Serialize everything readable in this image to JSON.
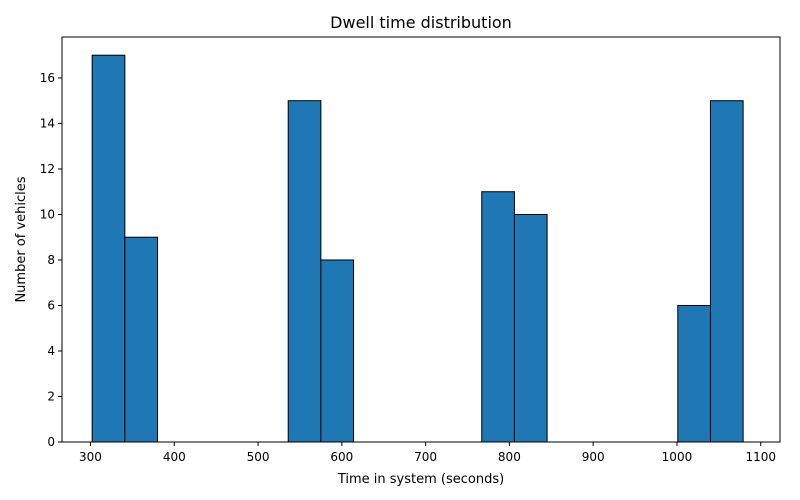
{
  "chart_data": {
    "type": "bar",
    "title": "Dwell time distribution",
    "xlabel": "Time in system (seconds)",
    "ylabel": "Number of vehicles",
    "xlim": [
      266,
      1123
    ],
    "ylim": [
      0,
      17.8
    ],
    "xticks": [
      300,
      400,
      500,
      600,
      700,
      800,
      900,
      1000,
      1100
    ],
    "yticks": [
      0,
      2,
      4,
      6,
      8,
      10,
      12,
      14,
      16
    ],
    "bins": [
      {
        "x0": 302,
        "x1": 341,
        "value": 17
      },
      {
        "x0": 341,
        "x1": 380,
        "value": 9
      },
      {
        "x0": 536,
        "x1": 575,
        "value": 15
      },
      {
        "x0": 575,
        "x1": 614,
        "value": 8
      },
      {
        "x0": 767,
        "x1": 806,
        "value": 11
      },
      {
        "x0": 806,
        "x1": 845,
        "value": 10
      },
      {
        "x0": 1001,
        "x1": 1040,
        "value": 6
      },
      {
        "x0": 1040,
        "x1": 1079,
        "value": 15
      }
    ],
    "bar_color": "#1f77b4",
    "edge_color": "#000000",
    "grid": false
  }
}
